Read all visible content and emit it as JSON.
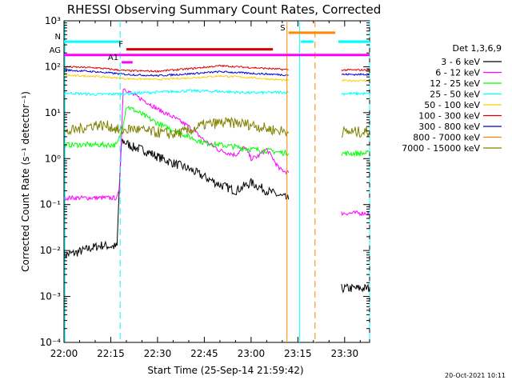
{
  "chart_data": {
    "type": "line",
    "title": "RHESSI Observing Summary Count Rates, Corrected",
    "xlabel": "Start Time (25-Sep-14 21:59:42)",
    "ylabel": "Corrected Count Rate (s⁻¹ detector⁻¹)",
    "date_stamp": "20-Oct-2021 10:11",
    "legend_title": "Det 1,3,6,9",
    "legend_placement": "right",
    "x_unit": "minutes after 22:00 UT",
    "xlim": [
      0,
      98
    ],
    "ylim": [
      0.0001,
      1000
    ],
    "yscale": "log",
    "x_tick_labels": [
      "22:00",
      "22:15",
      "22:30",
      "22:45",
      "23:00",
      "23:15",
      "23:30"
    ],
    "x_tick_values": [
      0,
      15,
      30,
      45,
      60,
      75,
      90
    ],
    "y_tick_values": [
      0.0001,
      0.001,
      0.01,
      0.1,
      1,
      10,
      100,
      1000
    ],
    "y_tick_labels": [
      "10⁻⁴",
      "10⁻³",
      "10⁻²",
      "10⁻¹",
      "10⁰",
      "10¹",
      "10²",
      "10³"
    ],
    "series": [
      {
        "name": "3 - 6 keV",
        "color": "#000000",
        "noise": 0.1,
        "segments": [
          {
            "x": [
              0,
              4,
              8,
              12,
              17,
              17.8,
              18.5,
              22,
              26,
              30,
              35,
              40,
              45,
              50,
              55,
              60,
              65,
              72
            ],
            "y": [
              0.008,
              0.009,
              0.011,
              0.013,
              0.012,
              0.3,
              2.5,
              1.8,
              1.5,
              1.1,
              0.8,
              0.6,
              0.4,
              0.27,
              0.2,
              0.3,
              0.2,
              0.13
            ]
          },
          {
            "x": [
              89,
              98
            ],
            "y": [
              0.0015,
              0.0015
            ]
          }
        ]
      },
      {
        "name": "6 - 12 keV",
        "color": "#ff00ff",
        "noise": 0.05,
        "segments": [
          {
            "x": [
              0,
              8,
              17,
              17.8,
              19,
              22,
              26,
              30,
              35,
              40,
              45,
              50,
              55,
              58,
              60,
              62,
              65,
              67,
              69,
              72
            ],
            "y": [
              0.14,
              0.14,
              0.14,
              0.2,
              35,
              25,
              18,
              12,
              8,
              5,
              2.5,
              1.5,
              1.2,
              1.8,
              1.0,
              1.1,
              1.6,
              1.0,
              0.6,
              0.5
            ]
          },
          {
            "x": [
              89,
              98
            ],
            "y": [
              0.065,
              0.065
            ]
          }
        ]
      },
      {
        "name": "12 - 25 keV",
        "color": "#00ff00",
        "noise": 0.06,
        "segments": [
          {
            "x": [
              0,
              8,
              17,
              18.5,
              20,
              24,
              28,
              32,
              36,
              40,
              45,
              50,
              55,
              60,
              65,
              72
            ],
            "y": [
              2.0,
              2.0,
              2.0,
              4,
              14,
              10,
              7,
              5,
              4,
              3,
              2.2,
              2.0,
              1.8,
              1.6,
              1.5,
              1.3
            ]
          },
          {
            "x": [
              89,
              98
            ],
            "y": [
              1.3,
              1.3
            ]
          }
        ]
      },
      {
        "name": "25 - 50 keV",
        "color": "#00ffff",
        "noise": 0.03,
        "segments": [
          {
            "x": [
              0,
              10,
              20,
              30,
              40,
              50,
              60,
              72
            ],
            "y": [
              27,
              25,
              26,
              28,
              30,
              29,
              27,
              28
            ]
          },
          {
            "x": [
              89,
              98
            ],
            "y": [
              26,
              26
            ]
          }
        ]
      },
      {
        "name": "50 - 100 keV",
        "color": "#ffcc00",
        "noise": 0.02,
        "segments": [
          {
            "x": [
              0,
              10,
              20,
              30,
              40,
              50,
              60,
              72
            ],
            "y": [
              65,
              62,
              55,
              53,
              57,
              63,
              58,
              50
            ]
          },
          {
            "x": [
              89,
              98
            ],
            "y": [
              50,
              50
            ]
          }
        ]
      },
      {
        "name": "100 - 300 keV",
        "color": "#dd0000",
        "noise": 0.02,
        "segments": [
          {
            "x": [
              0,
              10,
              20,
              30,
              40,
              50,
              60,
              72
            ],
            "y": [
              100,
              95,
              82,
              80,
              90,
              105,
              96,
              86
            ]
          },
          {
            "x": [
              89,
              98
            ],
            "y": [
              85,
              85
            ]
          }
        ]
      },
      {
        "name": "300 - 800 keV",
        "color": "#0000cc",
        "noise": 0.02,
        "segments": [
          {
            "x": [
              0,
              10,
              20,
              30,
              40,
              50,
              60,
              72
            ],
            "y": [
              85,
              78,
              68,
              64,
              70,
              78,
              72,
              66
            ]
          },
          {
            "x": [
              89,
              98
            ],
            "y": [
              68,
              68
            ]
          }
        ]
      },
      {
        "name": "800 - 7000 keV",
        "color": "#ff8800",
        "noise": 0.0,
        "segments": []
      },
      {
        "name": "7000 - 15000 keV",
        "color": "#808000",
        "noise": 0.12,
        "segments": [
          {
            "x": [
              0,
              5,
              10,
              15,
              18,
              22,
              26,
              30,
              35,
              40,
              45,
              50,
              55,
              60,
              65,
              72
            ],
            "y": [
              3.6,
              4.5,
              5.5,
              5.0,
              4.0,
              4.5,
              4.0,
              3.7,
              3.4,
              4.0,
              5.5,
              6.0,
              6.0,
              5.5,
              4.5,
              3.8
            ]
          },
          {
            "x": [
              89,
              98
            ],
            "y": [
              3.8,
              3.8
            ]
          }
        ]
      }
    ],
    "vertical_markers": [
      {
        "x": 0.3,
        "color": "#00ffff",
        "style": "solid"
      },
      {
        "x": 18.0,
        "color": "#00ffff",
        "style": "dashed"
      },
      {
        "x": 71.5,
        "color": "#ff8800",
        "style": "solid"
      },
      {
        "x": 80.5,
        "color": "#ff8800",
        "style": "dashed"
      },
      {
        "x": 80.5,
        "color": "#ffffff",
        "style": "dashed-gap"
      },
      {
        "x": 75.5,
        "color": "#00ffff",
        "style": "solid"
      },
      {
        "x": 98.0,
        "color": "#00ffff",
        "style": "dashed"
      }
    ],
    "flags": [
      {
        "label": "N",
        "color": "#00ffff",
        "y": 350,
        "segments": [
          [
            0,
            18
          ],
          [
            88,
            98
          ]
        ]
      },
      {
        "label": "F",
        "color": "#dd0000",
        "y": 240,
        "segments": [
          [
            20,
            67
          ]
        ]
      },
      {
        "label": "AG",
        "color": "#ff00ff",
        "y": 180,
        "segments": [
          [
            0,
            98
          ]
        ]
      },
      {
        "label": "A1",
        "color": "#ff00ff",
        "y": 125,
        "segments": [
          [
            18.5,
            22
          ]
        ]
      },
      {
        "label": "S",
        "color": "#ff8800",
        "y": 550,
        "segments": [
          [
            72,
            87
          ]
        ]
      },
      {
        "label": "",
        "color": "#00ffff",
        "y": 350,
        "segments": [
          [
            76,
            80
          ],
          [
            88,
            98
          ]
        ]
      }
    ]
  }
}
